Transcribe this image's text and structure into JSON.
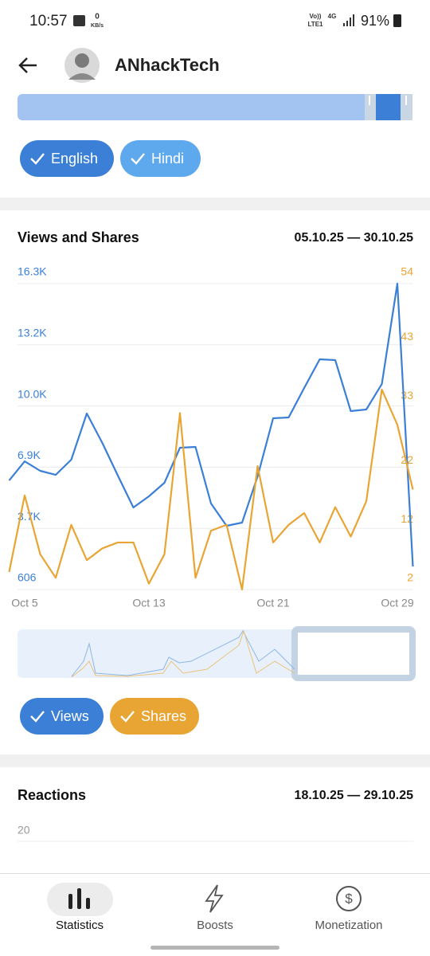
{
  "status": {
    "time": "10:57",
    "speed": "0",
    "speed_unit": "KB/s",
    "volte": "Vo))",
    "lte": "LTE1",
    "network": "4G",
    "battery": "91%"
  },
  "header": {
    "title": "ANhackTech"
  },
  "filters": [
    "English",
    "Hindi"
  ],
  "chart_data": {
    "type": "line",
    "title": "Views and Shares",
    "subtitle": "05.10.25 — 30.10.25",
    "categories": [
      null,
      "Oct 5",
      null,
      null,
      null,
      null,
      null,
      null,
      null,
      "Oct 13",
      null,
      null,
      null,
      null,
      null,
      null,
      null,
      "Oct 21",
      null,
      null,
      null,
      null,
      null,
      null,
      null,
      "Oct 29",
      null
    ],
    "series": [
      {
        "name": "Views",
        "color": "#3b7fd6",
        "values": [
          6205,
          7186,
          6696,
          6491,
          7268,
          9638,
          8126,
          6450,
          4816,
          5388,
          6083,
          7881,
          7922,
          5020,
          3876,
          4039,
          6410,
          9393,
          9434,
          10946,
          12417,
          12377,
          9761,
          9843,
          11150,
          16301,
          1791
        ]
      },
      {
        "name": "Shares",
        "color": "#e9a534",
        "axis": "y2",
        "values": [
          5,
          18,
          8,
          4,
          13,
          7,
          9,
          10,
          10,
          3,
          8,
          32,
          4,
          12,
          13,
          2,
          23,
          10,
          13,
          15,
          10,
          16,
          11,
          17,
          36,
          30,
          19
        ]
      }
    ],
    "ylim": [
      606,
      16301
    ],
    "yticks": [
      606,
      {
        "value": 3745,
        "label": "3.7K"
      },
      {
        "value": 6884,
        "label": "6.9K"
      },
      {
        "value": 10023,
        "label": "10.0K"
      },
      {
        "value": 13162,
        "label": "13.2K"
      },
      {
        "value": 16301,
        "label": "16.3K"
      }
    ],
    "y2lim": [
      2,
      54
    ],
    "y2ticks": [
      2,
      12,
      22,
      33,
      43,
      54
    ],
    "grid": true
  },
  "reactions": {
    "title": "Reactions",
    "date_range": "18.10.25 — 29.10.25",
    "yticks": [
      20
    ]
  },
  "nav": [
    "Statistics",
    "Boosts",
    "Monetization"
  ]
}
